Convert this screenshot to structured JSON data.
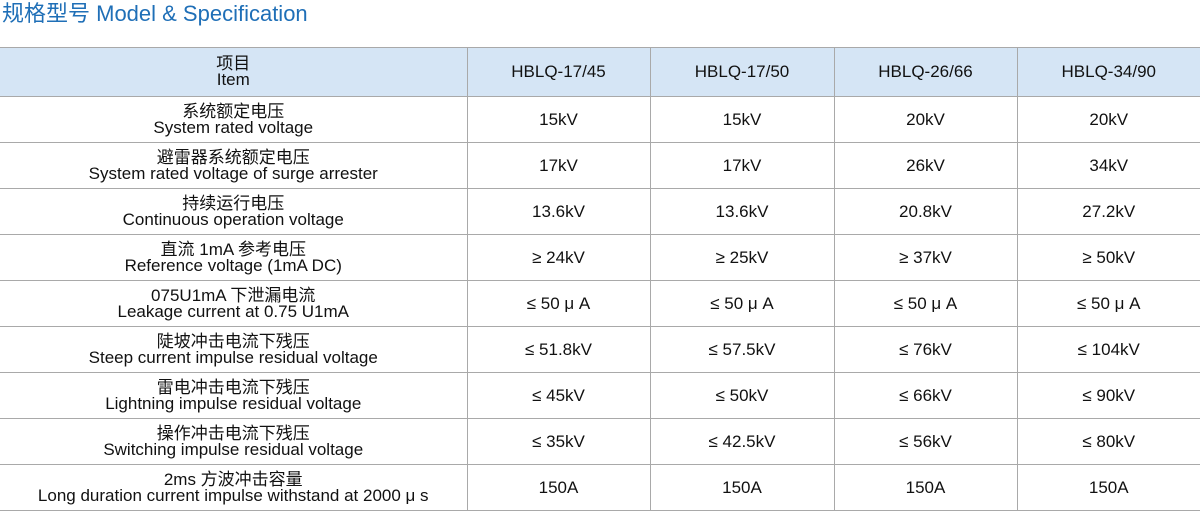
{
  "header": {
    "title": "规格型号 Model & Specification"
  },
  "table": {
    "columns": {
      "zh": "项目",
      "en": "Item",
      "models": [
        "HBLQ-17/45",
        "HBLQ-17/50",
        "HBLQ-26/66",
        "HBLQ-34/90"
      ]
    },
    "rows": [
      {
        "zh": "系统额定电压",
        "en": "System rated voltage",
        "values": [
          "15kV",
          "15kV",
          "20kV",
          "20kV"
        ]
      },
      {
        "zh": "避雷器系统额定电压",
        "en": "System rated voltage of surge arrester",
        "values": [
          "17kV",
          "17kV",
          "26kV",
          "34kV"
        ]
      },
      {
        "zh": "持续运行电压",
        "en": "Continuous operation voltage",
        "values": [
          "13.6kV",
          "13.6kV",
          "20.8kV",
          "27.2kV"
        ]
      },
      {
        "zh": "直流 1mA 参考电压",
        "en": "Reference voltage (1mA DC)",
        "values": [
          "≥ 24kV",
          "≥ 25kV",
          "≥ 37kV",
          "≥ 50kV"
        ]
      },
      {
        "zh": "075U1mA 下泄漏电流",
        "en": "Leakage current at 0.75 U1mA",
        "values": [
          "≤ 50 μ A",
          "≤ 50 μ A",
          "≤ 50 μ A",
          "≤ 50 μ A"
        ]
      },
      {
        "zh": "陡坡冲击电流下残压",
        "en": "Steep current impulse residual voltage",
        "values": [
          "≤ 51.8kV",
          "≤ 57.5kV",
          "≤ 76kV",
          "≤ 104kV"
        ]
      },
      {
        "zh": "雷电冲击电流下残压",
        "en": "Lightning impulse residual voltage",
        "values": [
          "≤ 45kV",
          "≤ 50kV",
          "≤ 66kV",
          "≤ 90kV"
        ]
      },
      {
        "zh": "操作冲击电流下残压",
        "en": "Switching impulse residual voltage",
        "values": [
          "≤ 35kV",
          "≤ 42.5kV",
          "≤ 56kV",
          "≤ 80kV"
        ]
      },
      {
        "zh": "2ms 方波冲击容量",
        "en": "Long duration current impulse withstand at 2000 μ s",
        "values": [
          "150A",
          "150A",
          "150A",
          "150A"
        ]
      }
    ]
  }
}
